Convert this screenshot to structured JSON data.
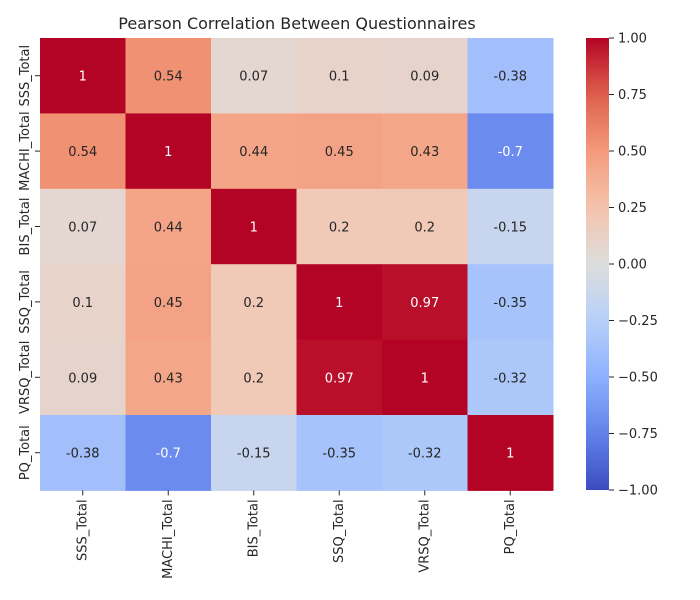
{
  "chart_data": {
    "type": "heatmap",
    "title": "Pearson Correlation Between Questionnaires",
    "xlabel": "",
    "ylabel": "",
    "x_categories": [
      "SSS_Total",
      "MACHI_Total",
      "BIS_Total",
      "SSQ_Total",
      "VRSQ_Total",
      "PQ_Total"
    ],
    "y_categories": [
      "SSS_Total",
      "MACHI_Total",
      "BIS_Total",
      "SSQ_Total",
      "VRSQ_Total",
      "PQ_Total"
    ],
    "values": [
      [
        1,
        0.54,
        0.07,
        0.1,
        0.09,
        -0.38
      ],
      [
        0.54,
        1,
        0.44,
        0.45,
        0.43,
        -0.7
      ],
      [
        0.07,
        0.44,
        1,
        0.2,
        0.2,
        -0.15
      ],
      [
        0.1,
        0.45,
        0.2,
        1,
        0.97,
        -0.35
      ],
      [
        0.09,
        0.43,
        0.2,
        0.97,
        1,
        -0.32
      ],
      [
        -0.38,
        -0.7,
        -0.15,
        -0.35,
        -0.32,
        1
      ]
    ],
    "colormap": "coolwarm",
    "vmin": -1,
    "vmax": 1,
    "colorbar_ticks": [
      "1.00",
      "0.75",
      "0.50",
      "0.25",
      "0.00",
      "−0.25",
      "−0.50",
      "−0.75",
      "−1.00"
    ],
    "grid": false,
    "legend": "colorbar-right"
  }
}
